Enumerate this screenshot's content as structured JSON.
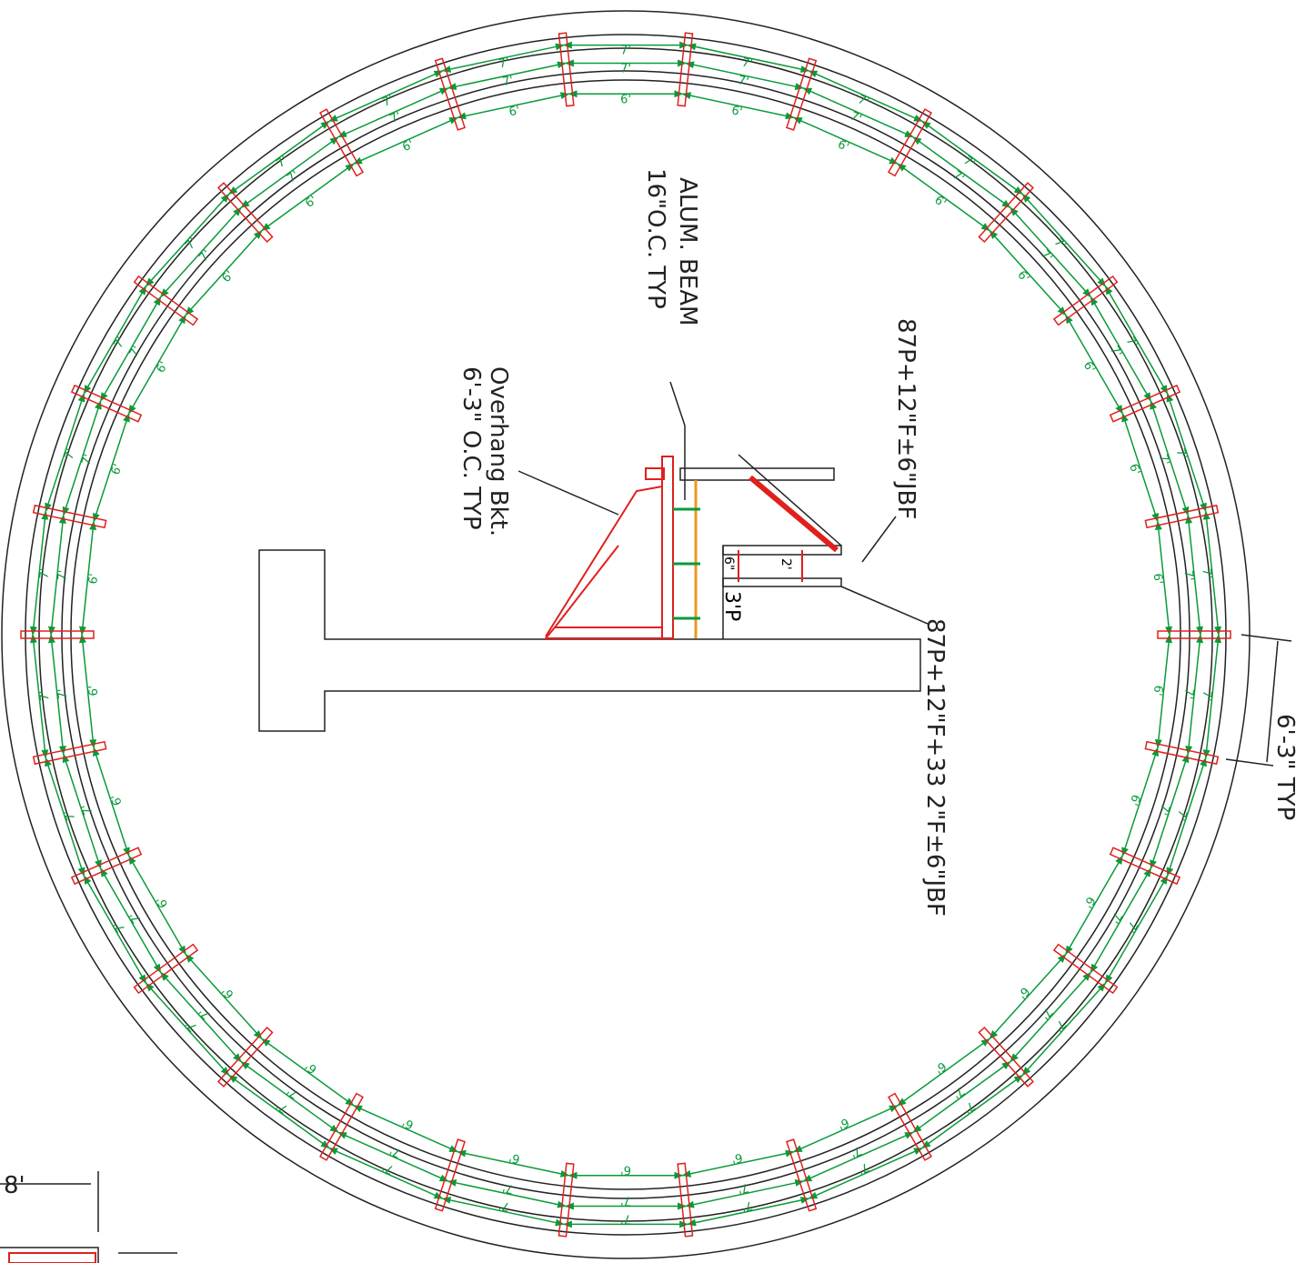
{
  "rings": [
    {
      "label": "7'"
    },
    {
      "label": "7'"
    },
    {
      "label": "6'"
    }
  ],
  "notes": {
    "beam_title": "ALUM. BEAM",
    "beam_spacing": "16\"O.C. TYP",
    "bracket_title": "Overhang Bkt.",
    "bracket_spacing": "6'-3\" O.C. TYP",
    "upper_deck": "87P+12\"F±6\"JBF",
    "lower_deck": "87P+12\"F+33 2\"F±6\"JBF",
    "typ_spacing": "6'-3\" TYP",
    "small_six": "6\"",
    "small_two": "2'",
    "post": "3'P",
    "corner_dim": "8'"
  }
}
